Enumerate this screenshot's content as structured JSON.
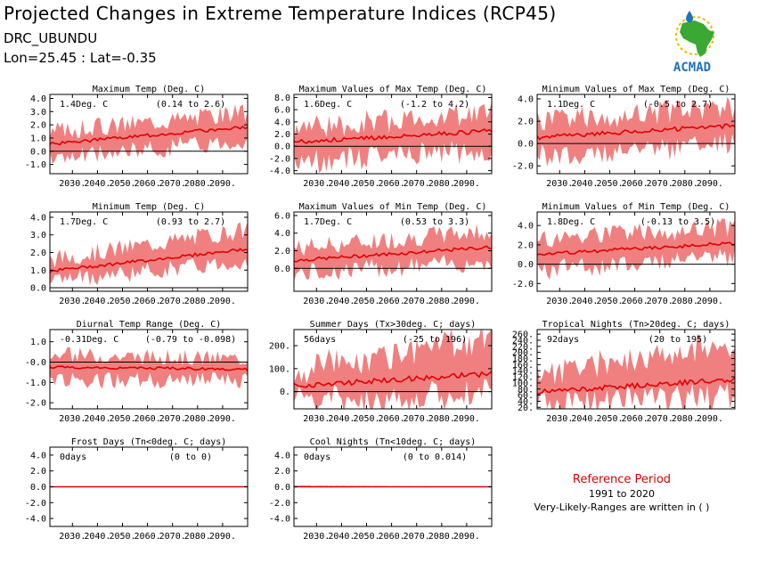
{
  "header": {
    "title": "Projected Changes in Extreme Temperature Indices (RCP45)",
    "location": "DRC_UBUNDU",
    "coords": "Lon=25.45 : Lat=-0.35"
  },
  "logo": {
    "text": "ACMAD",
    "colors": {
      "africa": "#3aa832",
      "sun": "#f2b500",
      "drop": "#1e73be",
      "text": "#1e73be"
    }
  },
  "reference": {
    "title": "Reference Period",
    "period": "1991 to 2020",
    "note": "Very-Likely-Ranges are written in ( )"
  },
  "colors": {
    "band": "#f08080",
    "line": "#e00000",
    "zero": "#000000"
  },
  "chart_data": [
    {
      "type": "area",
      "title": "Maximum Temp (Deg. C)",
      "value_label": "1.4Deg. C",
      "range_label": "(0.14 to 2.6)",
      "x": [
        2021,
        2100
      ],
      "xticks": [
        2030,
        2040,
        2050,
        2060,
        2070,
        2080,
        2090
      ],
      "xtick_labels": [
        "2030.",
        "2040.",
        "2050.",
        "2060.",
        "2070.",
        "2080.",
        "2090."
      ],
      "ylim": [
        -1.7,
        4.3
      ],
      "yticks": [
        -1.0,
        0.0,
        1.0,
        2.0,
        3.0,
        4.0
      ],
      "ytick_labels": [
        "-1.0",
        "0.0",
        "1.0",
        "2.0",
        "3.0",
        "4.0"
      ],
      "median_start": 0.55,
      "median_end": 1.85,
      "low_start": -0.6,
      "low_end": 0.9,
      "high_start": 1.5,
      "high_end": 3.0
    },
    {
      "type": "area",
      "title": "Maximum Values of Max Temp (Deg. C)",
      "value_label": "1.6Deg. C",
      "range_label": "(-1.2 to 4.2)",
      "x": [
        2021,
        2100
      ],
      "xticks": [
        2030,
        2040,
        2050,
        2060,
        2070,
        2080,
        2090
      ],
      "xtick_labels": [
        "2030.",
        "2040.",
        "2050.",
        "2060.",
        "2070.",
        "2080.",
        "2090."
      ],
      "ylim": [
        -4.5,
        8.5
      ],
      "yticks": [
        -4.0,
        -2.0,
        0.0,
        2.0,
        4.0,
        6.0,
        8.0
      ],
      "ytick_labels": [
        "-4.0",
        "-2.0",
        "0.0",
        "2.0",
        "4.0",
        "6.0",
        "8.0"
      ],
      "median_start": 0.7,
      "median_end": 2.5,
      "low_start": -2.5,
      "low_end": -0.8,
      "high_start": 3.0,
      "high_end": 5.5
    },
    {
      "type": "area",
      "title": "Minimum Values of Max Temp (Deg. C)",
      "value_label": "1.1Deg. C",
      "range_label": "(-0.5 to 2.7)",
      "x": [
        2021,
        2100
      ],
      "xticks": [
        2030,
        2040,
        2050,
        2060,
        2070,
        2080,
        2090
      ],
      "xtick_labels": [
        "2030.",
        "2040.",
        "2050.",
        "2060.",
        "2070.",
        "2080.",
        "2090."
      ],
      "ylim": [
        -2.7,
        4.4
      ],
      "yticks": [
        -2.0,
        0.0,
        2.0,
        4.0
      ],
      "ytick_labels": [
        "-2.0",
        "0.0",
        "2.0",
        "4.0"
      ],
      "median_start": 0.55,
      "median_end": 1.6,
      "low_start": -1.2,
      "low_end": 0.0,
      "high_start": 2.0,
      "high_end": 3.3
    },
    {
      "type": "area",
      "title": "Minimum Temp (Deg. C)",
      "value_label": "1.7Deg. C",
      "range_label": "(0.93 to 2.7)",
      "x": [
        2021,
        2100
      ],
      "xticks": [
        2030,
        2040,
        2050,
        2060,
        2070,
        2080,
        2090
      ],
      "xtick_labels": [
        "2030.",
        "2040.",
        "2050.",
        "2060.",
        "2070.",
        "2080.",
        "2090."
      ],
      "ylim": [
        -0.2,
        4.3
      ],
      "yticks": [
        0.0,
        1.0,
        2.0,
        3.0,
        4.0
      ],
      "ytick_labels": [
        "0.0",
        "1.0",
        "2.0",
        "3.0",
        "4.0"
      ],
      "median_start": 0.95,
      "median_end": 2.2,
      "low_start": 0.4,
      "low_end": 1.5,
      "high_start": 1.6,
      "high_end": 3.3
    },
    {
      "type": "area",
      "title": "Maximum Values of Min Temp (Deg. C)",
      "value_label": "1.7Deg. C",
      "range_label": "(0.53 to 3.3)",
      "x": [
        2021,
        2100
      ],
      "xticks": [
        2030,
        2040,
        2050,
        2060,
        2070,
        2080,
        2090
      ],
      "xtick_labels": [
        "2030.",
        "2040.",
        "2050.",
        "2060.",
        "2070.",
        "2080.",
        "2090."
      ],
      "ylim": [
        -2.6,
        6.4
      ],
      "yticks": [
        0.0,
        2.0,
        4.0,
        6.0
      ],
      "ytick_labels": [
        "0.0",
        "2.0",
        "4.0",
        "6.0"
      ],
      "median_start": 0.9,
      "median_end": 2.4,
      "low_start": -0.6,
      "low_end": 0.8,
      "high_start": 2.3,
      "high_end": 4.3
    },
    {
      "type": "area",
      "title": "Minimum Values of Min Temp (Deg. C)",
      "value_label": "1.8Deg. C",
      "range_label": "(-0.13 to 3.5)",
      "x": [
        2021,
        2100
      ],
      "xticks": [
        2030,
        2040,
        2050,
        2060,
        2070,
        2080,
        2090
      ],
      "xtick_labels": [
        "2030.",
        "2040.",
        "2050.",
        "2060.",
        "2070.",
        "2080.",
        "2090."
      ],
      "ylim": [
        -2.8,
        5.4
      ],
      "yticks": [
        -2.0,
        0.0,
        2.0,
        4.0
      ],
      "ytick_labels": [
        "-2.0",
        "0.0",
        "2.0",
        "4.0"
      ],
      "median_start": 1.0,
      "median_end": 2.2,
      "low_start": -0.6,
      "low_end": 0.8,
      "high_start": 2.6,
      "high_end": 3.8
    },
    {
      "type": "area",
      "title": "Diurnal Temp Range (Deg. C)",
      "value_label": "-0.31Deg. C",
      "range_label": "(-0.79 to -0.098)",
      "x": [
        2021,
        2100
      ],
      "xticks": [
        2030,
        2040,
        2050,
        2060,
        2070,
        2080,
        2090
      ],
      "xtick_labels": [
        "2030.",
        "2040.",
        "2050.",
        "2060.",
        "2070.",
        "2080.",
        "2090."
      ],
      "ylim": [
        -2.3,
        1.6
      ],
      "yticks": [
        -2.0,
        -1.0,
        0.0,
        1.0
      ],
      "ytick_labels": [
        "-2.0",
        "-1.0",
        "-0.0",
        "1.0"
      ],
      "median_start": -0.25,
      "median_end": -0.35,
      "low_start": -0.9,
      "low_end": -0.9,
      "high_start": 0.35,
      "high_end": 0.15
    },
    {
      "type": "area",
      "title": "Summer Days (Tx>30deg. C; days)",
      "value_label": "56days",
      "range_label": "(-25 to 196)",
      "x": [
        2021,
        2100
      ],
      "xticks": [
        2030,
        2040,
        2050,
        2060,
        2070,
        2080,
        2090
      ],
      "xtick_labels": [
        "2030.",
        "2040.",
        "2050.",
        "2060.",
        "2070.",
        "2080.",
        "2090."
      ],
      "ylim": [
        -75,
        270
      ],
      "yticks": [
        0,
        100,
        200
      ],
      "ytick_labels": [
        "0.",
        "100.",
        "200."
      ],
      "median_start": 25,
      "median_end": 78,
      "low_start": -45,
      "low_end": -10,
      "high_start": 95,
      "high_end": 235
    },
    {
      "type": "area",
      "title": "Tropical Nights (Tn>20deg. C; days)",
      "value_label": "92days",
      "range_label": "(20 to 195)",
      "x": [
        2021,
        2100
      ],
      "xticks": [
        2030,
        2040,
        2050,
        2060,
        2070,
        2080,
        2090
      ],
      "xtick_labels": [
        "2030.",
        "2040.",
        "2050.",
        "2060.",
        "2070.",
        "2080.",
        "2090."
      ],
      "ylim": [
        15,
        275
      ],
      "yticks": [
        20,
        40,
        60,
        80,
        100,
        120,
        140,
        160,
        180,
        200,
        220,
        240,
        260
      ],
      "ytick_labels": [
        "20.",
        "40.",
        "60.",
        "80.",
        "100.",
        "120.",
        "140.",
        "160.",
        "180.",
        "200.",
        "220.",
        "240.",
        "260."
      ],
      "median_start": 70,
      "median_end": 112,
      "low_start": 35,
      "low_end": 55,
      "high_start": 130,
      "high_end": 235
    },
    {
      "type": "area",
      "title": "Frost Days (Tn<0deg. C; days)",
      "value_label": "0days",
      "range_label": "(0 to 0)",
      "x": [
        2021,
        2100
      ],
      "xticks": [
        2030,
        2040,
        2050,
        2060,
        2070,
        2080,
        2090
      ],
      "xtick_labels": [
        "2030.",
        "2040.",
        "2050.",
        "2060.",
        "2070.",
        "2080.",
        "2090."
      ],
      "ylim": [
        -5,
        5
      ],
      "yticks": [
        -4.0,
        -2.0,
        0.0,
        2.0,
        4.0
      ],
      "ytick_labels": [
        "-4.0",
        "-2.0",
        "0.0",
        "2.0",
        "4.0"
      ],
      "median_start": 0,
      "median_end": 0,
      "low_start": 0,
      "low_end": 0,
      "high_start": 0,
      "high_end": 0
    },
    {
      "type": "area",
      "title": "Cool Nights (Tn<10deg. C; days)",
      "value_label": "0days",
      "range_label": "(0 to 0.014)",
      "x": [
        2021,
        2100
      ],
      "xticks": [
        2030,
        2040,
        2050,
        2060,
        2070,
        2080,
        2090
      ],
      "xtick_labels": [
        "2030.",
        "2040.",
        "2050.",
        "2060.",
        "2070.",
        "2080.",
        "2090."
      ],
      "ylim": [
        -5,
        5
      ],
      "yticks": [
        -4.0,
        -2.0,
        0.0,
        2.0,
        4.0
      ],
      "ytick_labels": [
        "-4.0",
        "-2.0",
        "0.0",
        "2.0",
        "4.0"
      ],
      "median_start": 0,
      "median_end": 0,
      "low_start": 0,
      "low_end": 0,
      "high_start": 0.15,
      "high_end": 0
    }
  ]
}
